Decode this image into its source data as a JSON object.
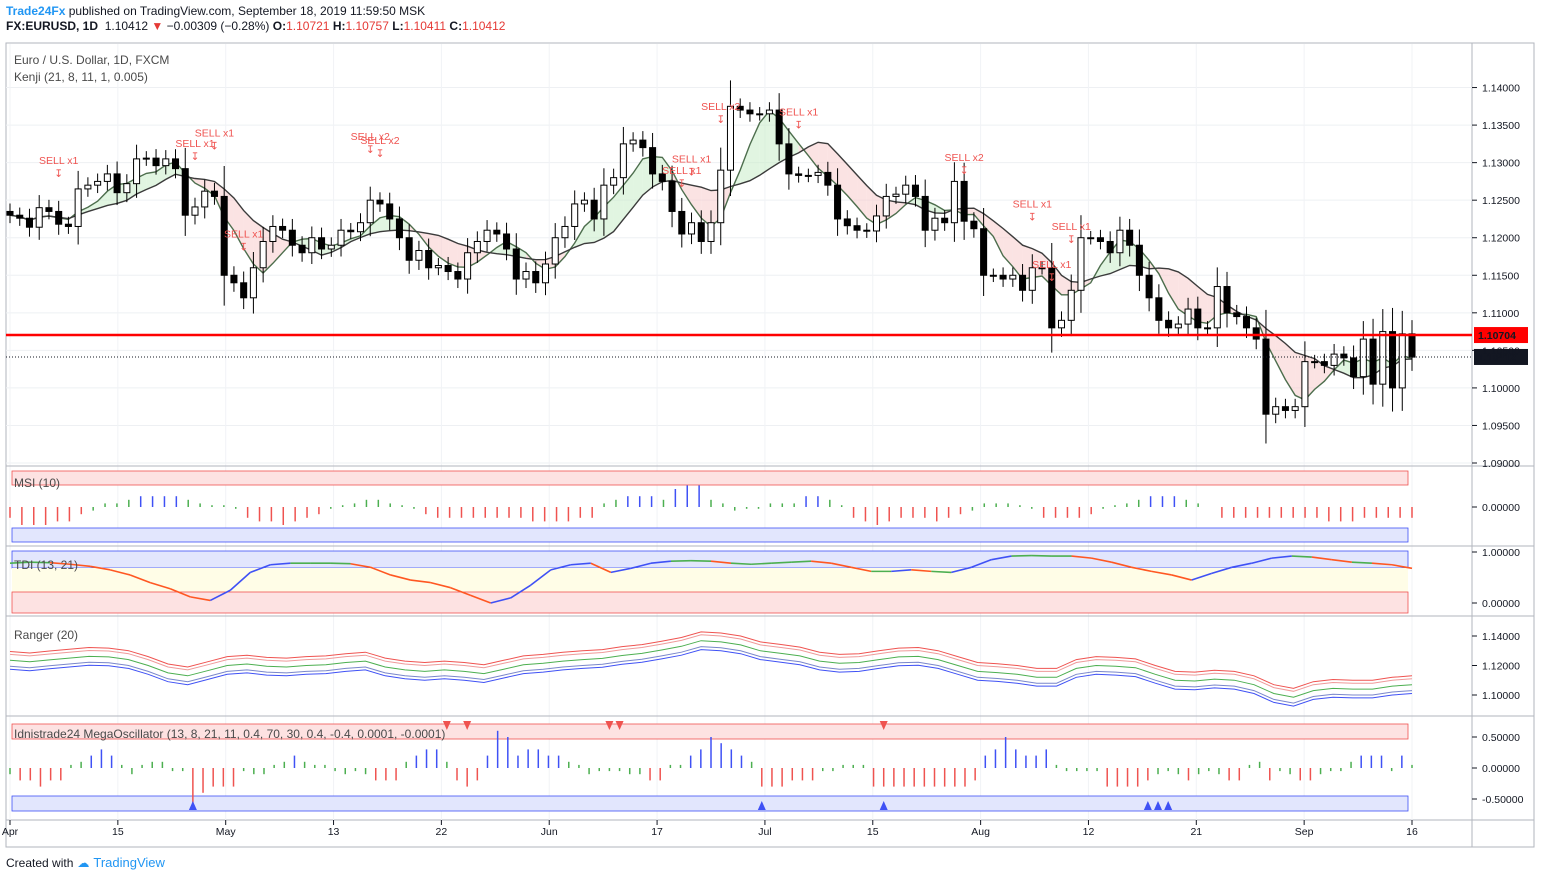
{
  "header": {
    "publisher": "Trade24Fx",
    "published_text": "published on TradingView.com, September 18, 2019 11:59:50 MSK",
    "symbol": "FX:EURUSD, 1D",
    "last": "1.10412",
    "change": "−0.00309 (−0.28%)",
    "o_label": "O:",
    "o_value": "1.10721",
    "h_label": "H:",
    "h_value": "1.10757",
    "l_label": "L:",
    "l_value": "1.10411",
    "c_label": "C:",
    "c_value": "1.10412"
  },
  "footer": {
    "created_with": "Created with",
    "brand": "TradingView"
  },
  "colors": {
    "up": "#ffffff",
    "down": "#000000",
    "border": "#000000",
    "sell": "#ef5350",
    "level": "#ff0000",
    "blue": "#3f51f5",
    "green": "#4caf50",
    "kenji_fast": "#4d6e4d",
    "kenji_slow": "#3b3b3b"
  },
  "chart_data": [
    {
      "type": "candlestick",
      "title": "Euro / U.S. Dollar, 1D, FXCM",
      "indicator": "Kenji (21, 8, 11, 1, 0.005)",
      "x_ticks": [
        "Apr",
        "15",
        "May",
        "13",
        "22",
        "Jun",
        "17",
        "Jul",
        "15",
        "Aug",
        "12",
        "21",
        "Sep",
        "16"
      ],
      "y_ticks": [
        "1.14000",
        "1.13500",
        "1.13000",
        "1.12500",
        "1.12000",
        "1.11500",
        "1.11000",
        "1.10500",
        "1.10000",
        "1.09500",
        "1.09000"
      ],
      "ylim": [
        1.09,
        1.145
      ],
      "horizontal_line": {
        "value": 1.10704,
        "label": "1.10704"
      },
      "last_price": {
        "value": 1.10412,
        "label": "1.10412"
      },
      "closes": [
        1.123,
        1.1226,
        1.1214,
        1.124,
        1.1235,
        1.1218,
        1.1215,
        1.1265,
        1.127,
        1.1275,
        1.1285,
        1.126,
        1.1272,
        1.1305,
        1.1306,
        1.1296,
        1.1305,
        1.1292,
        1.123,
        1.1241,
        1.1262,
        1.1255,
        1.115,
        1.114,
        1.112,
        1.116,
        1.1195,
        1.1215,
        1.121,
        1.119,
        1.118,
        1.12,
        1.1185,
        1.119,
        1.121,
        1.1208,
        1.122,
        1.125,
        1.1245,
        1.1225,
        1.12,
        1.117,
        1.1183,
        1.116,
        1.1163,
        1.1155,
        1.1145,
        1.118,
        1.1195,
        1.121,
        1.1205,
        1.1185,
        1.1145,
        1.1155,
        1.114,
        1.1165,
        1.12,
        1.1215,
        1.1245,
        1.125,
        1.1225,
        1.127,
        1.128,
        1.1325,
        1.133,
        1.132,
        1.1285,
        1.1275,
        1.1235,
        1.1205,
        1.122,
        1.1195,
        1.122,
        1.129,
        1.1375,
        1.137,
        1.1365,
        1.1365,
        1.137,
        1.1325,
        1.1285,
        1.1283,
        1.1283,
        1.1287,
        1.127,
        1.1225,
        1.1216,
        1.121,
        1.1209,
        1.1229,
        1.1255,
        1.1258,
        1.127,
        1.1255,
        1.121,
        1.1226,
        1.122,
        1.1275,
        1.1222,
        1.1212,
        1.115,
        1.115,
        1.1145,
        1.115,
        1.113,
        1.116,
        1.116,
        1.108,
        1.109,
        1.113,
        1.12,
        1.12,
        1.1195,
        1.118,
        1.121,
        1.119,
        1.115,
        1.112,
        1.109,
        1.108,
        1.1085,
        1.1105,
        1.108,
        1.108,
        1.1135,
        1.11,
        1.1095,
        1.108,
        1.1065,
        1.0965,
        1.0975,
        1.097,
        1.0975,
        1.1035,
        1.1035,
        1.103,
        1.1045,
        1.104,
        1.1015,
        1.1065,
        1.1005,
        1.1075,
        1.1,
        1.1072,
        1.1041
      ],
      "signals": [
        {
          "label": "SELL x1",
          "at_bar": 5
        },
        {
          "label": "SELL x1",
          "at_bar": 19
        },
        {
          "label": "SELL x1",
          "at_bar": 21
        },
        {
          "label": "SELL x1",
          "at_bar": 24
        },
        {
          "label": "SELL x2",
          "at_bar": 37
        },
        {
          "label": "SELL x2",
          "at_bar": 38
        },
        {
          "label": "SELL x1",
          "at_bar": 69
        },
        {
          "label": "SELL x1",
          "at_bar": 70
        },
        {
          "label": "SELL x2",
          "at_bar": 73
        },
        {
          "label": "SELL x1",
          "at_bar": 81
        },
        {
          "label": "SELL x2",
          "at_bar": 98
        },
        {
          "label": "SELL x1",
          "at_bar": 105
        },
        {
          "label": "SELL x1",
          "at_bar": 107
        },
        {
          "label": "SELL x1",
          "at_bar": 109
        }
      ]
    },
    {
      "type": "histogram",
      "title": "MSI (10)",
      "y_ticks": [
        "0.00000"
      ],
      "values": [
        -0.3,
        -0.5,
        -0.5,
        -0.5,
        -0.4,
        -0.4,
        -0.2,
        -0.1,
        0.1,
        0.1,
        0.2,
        0.3,
        0.3,
        0.3,
        0.3,
        0.2,
        0.1,
        0.05,
        0.05,
        -0.05,
        -0.3,
        -0.4,
        -0.4,
        -0.5,
        -0.4,
        -0.3,
        -0.2,
        -0.05,
        0.05,
        0.1,
        0.2,
        0.2,
        0.1,
        0.05,
        -0.05,
        -0.2,
        -0.3,
        -0.3,
        -0.3,
        -0.3,
        -0.3,
        -0.3,
        -0.3,
        -0.3,
        -0.4,
        -0.4,
        -0.4,
        -0.4,
        -0.3,
        -0.3,
        0.1,
        0.2,
        0.3,
        0.3,
        0.3,
        0.2,
        0.5,
        0.6,
        0.6,
        0.2,
        0.1,
        -0.1,
        -0.05,
        -0.05,
        0.1,
        0.1,
        0.1,
        0.3,
        0.3,
        0.2,
        0.05,
        -0.3,
        -0.4,
        -0.5,
        -0.4,
        -0.3,
        -0.3,
        -0.3,
        -0.4,
        -0.3,
        -0.2,
        -0.1,
        0.1,
        0.1,
        0.1,
        0.05,
        -0.05,
        -0.3,
        -0.3,
        -0.3,
        -0.3,
        -0.2,
        -0.05,
        0.05,
        0.1,
        0.2,
        0.3,
        0.3,
        0.3,
        0.2,
        0.1,
        0,
        -0.3,
        -0.3,
        -0.3,
        -0.3,
        -0.3,
        -0.3,
        -0.3,
        -0.3,
        -0.3,
        -0.4,
        -0.4,
        -0.4,
        -0.3,
        -0.3,
        -0.3,
        -0.3,
        -0.3
      ]
    },
    {
      "type": "line",
      "title": "TDI (13, 21)",
      "y_ticks": [
        "1.00000",
        "0.00000"
      ],
      "values": [
        0.78,
        0.8,
        0.79,
        0.76,
        0.72,
        0.65,
        0.55,
        0.4,
        0.28,
        0.12,
        0.05,
        0.25,
        0.6,
        0.75,
        0.78,
        0.78,
        0.78,
        0.77,
        0.7,
        0.55,
        0.45,
        0.4,
        0.3,
        0.15,
        0.0,
        0.1,
        0.35,
        0.65,
        0.75,
        0.78,
        0.6,
        0.68,
        0.78,
        0.82,
        0.83,
        0.82,
        0.78,
        0.76,
        0.78,
        0.8,
        0.82,
        0.78,
        0.7,
        0.62,
        0.62,
        0.65,
        0.62,
        0.6,
        0.7,
        0.85,
        0.92,
        0.93,
        0.92,
        0.92,
        0.88,
        0.8,
        0.7,
        0.62,
        0.55,
        0.45,
        0.58,
        0.7,
        0.78,
        0.88,
        0.92,
        0.9,
        0.85,
        0.8,
        0.78,
        0.75,
        0.68
      ]
    },
    {
      "type": "line",
      "title": "Ranger (20)",
      "y_ticks": [
        "1.14000",
        "1.12000",
        "1.10000"
      ],
      "series_colors": [
        "#ef5350",
        "#ef9a9a",
        "#4caf50",
        "#7986cb",
        "#3f51f5"
      ],
      "values": [
        1.1235,
        1.1225,
        1.1238,
        1.125,
        1.1262,
        1.1258,
        1.124,
        1.12,
        1.115,
        1.113,
        1.1165,
        1.12,
        1.121,
        1.1195,
        1.119,
        1.12,
        1.1205,
        1.122,
        1.123,
        1.119,
        1.117,
        1.116,
        1.117,
        1.116,
        1.1145,
        1.1175,
        1.1205,
        1.1215,
        1.123,
        1.124,
        1.1248,
        1.1268,
        1.1282,
        1.1305,
        1.133,
        1.1368,
        1.136,
        1.134,
        1.13,
        1.1283,
        1.1265,
        1.123,
        1.1215,
        1.122,
        1.124,
        1.1258,
        1.1262,
        1.124,
        1.12,
        1.116,
        1.1152,
        1.114,
        1.112,
        1.112,
        1.118,
        1.12,
        1.1195,
        1.1185,
        1.114,
        1.11,
        1.1095,
        1.1108,
        1.11,
        1.107,
        1.101,
        1.0985,
        1.103,
        1.1045,
        1.104,
        1.104,
        1.106,
        1.107
      ]
    },
    {
      "type": "histogram",
      "title": "Idnistrade24 MegaOscillator (13, 8, 21, 11, 0.4, 70, 30, 0.4, -0.4, 0.0001, -0.0001)",
      "y_ticks": [
        "0.50000",
        "0.00000",
        "-0.50000"
      ],
      "values": [
        -0.1,
        -0.2,
        -0.2,
        -0.3,
        -0.2,
        -0.2,
        0.05,
        0.1,
        0.2,
        0.3,
        0.2,
        0.05,
        -0.1,
        0.05,
        0.1,
        0.1,
        -0.05,
        -0.05,
        -0.6,
        -0.4,
        -0.3,
        -0.3,
        -0.3,
        -0.05,
        -0.1,
        -0.1,
        0.05,
        0.1,
        0.2,
        0.1,
        0.05,
        0.05,
        -0.05,
        -0.1,
        -0.05,
        -0.1,
        -0.2,
        -0.2,
        -0.2,
        0.1,
        0.2,
        0.3,
        0.3,
        0.1,
        -0.2,
        -0.3,
        -0.2,
        0.2,
        0.6,
        0.5,
        0.2,
        0.3,
        0.3,
        0.2,
        0.2,
        0.1,
        0.05,
        -0.1,
        -0.05,
        -0.05,
        -0.05,
        -0.1,
        -0.1,
        -0.2,
        -0.2,
        0.05,
        0.05,
        0.2,
        0.3,
        0.5,
        0.4,
        0.3,
        0.2,
        0.1,
        -0.3,
        -0.3,
        -0.3,
        -0.2,
        -0.2,
        -0.2,
        -0.05,
        -0.05,
        0.05,
        0.05,
        0.05,
        -0.3,
        -0.3,
        -0.3,
        -0.3,
        -0.3,
        -0.3,
        -0.3,
        -0.3,
        -0.3,
        -0.3,
        -0.2,
        0.2,
        0.3,
        0.5,
        0.3,
        0.2,
        0.2,
        0.3,
        0.05,
        -0.05,
        -0.05,
        -0.05,
        -0.05,
        -0.3,
        -0.3,
        -0.3,
        -0.3,
        -0.2,
        -0.1,
        -0.05,
        -0.1,
        -0.2,
        -0.1,
        -0.05,
        -0.1,
        -0.2,
        -0.2,
        0.05,
        0.1,
        -0.2,
        -0.05,
        -0.1,
        -0.2,
        -0.2,
        -0.1,
        -0.05,
        -0.05,
        0.1,
        0.2,
        0.2,
        0.2,
        -0.05,
        0.2,
        0.05
      ],
      "up_arrows_at": [
        18,
        74,
        86,
        112,
        113,
        114
      ],
      "down_arrows_at": [
        43,
        45,
        59,
        60,
        86
      ]
    }
  ]
}
